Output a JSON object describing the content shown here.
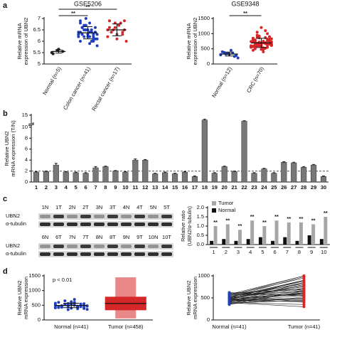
{
  "chart_data": [
    {
      "type": "dot_plot",
      "panel_label": "a",
      "title": "GSE5206",
      "ylabel": [
        "Relative mRNA",
        "expression of UBN2"
      ],
      "groups": [
        {
          "name": "Normal (n=5)",
          "color": "#222222",
          "values": [
            5.5,
            5.6,
            5.55,
            5.45,
            5.65
          ]
        },
        {
          "name": "Colon cancer (n=41)",
          "color": "#1f3fbf",
          "values": [
            6.3,
            6.5,
            6.1,
            6.8,
            6.2,
            6.4,
            6.6,
            5.9,
            6.3,
            6.7,
            6.0,
            6.4,
            6.5,
            6.2,
            6.9,
            6.3,
            6.1,
            6.6,
            6.4,
            5.8,
            6.2,
            6.5,
            6.3,
            6.7,
            6.0,
            6.4,
            6.2,
            6.6,
            6.3,
            6.8,
            6.1,
            6.5,
            6.4,
            6.2,
            7.0,
            6.3,
            6.0,
            6.5,
            6.4,
            6.6,
            6.2
          ]
        },
        {
          "name": "Rectal cancer (n=17)",
          "color": "#d62728",
          "values": [
            6.5,
            6.8,
            6.3,
            6.6,
            6.1,
            6.9,
            6.4,
            6.7,
            6.0,
            6.5,
            6.8,
            6.2,
            6.6,
            6.4,
            6.9,
            6.3,
            6.5
          ]
        }
      ],
      "significance": [
        "**",
        "**"
      ],
      "ylim": [
        5,
        7
      ],
      "yticks": [
        5,
        5.5,
        6,
        6.5,
        7
      ]
    },
    {
      "type": "dot_plot",
      "title": "GSE9348",
      "ylabel": [
        "Relative mRNA",
        "expression of UBN2"
      ],
      "groups": [
        {
          "name": "Normal (n=12)",
          "color": "#1f3fbf",
          "values": [
            300,
            350,
            250,
            400,
            320,
            280,
            380,
            450,
            200,
            330,
            360,
            310
          ]
        },
        {
          "name": "CRC (n=70)",
          "color": "#d62728",
          "values": [
            600,
            700,
            550,
            800,
            650,
            900,
            500,
            750,
            620,
            680,
            1100,
            580,
            720,
            640,
            850,
            480,
            690,
            760,
            530,
            610,
            950,
            670,
            590,
            710,
            820,
            450,
            630,
            780,
            560,
            700,
            660,
            880,
            520,
            740,
            600,
            1000,
            570,
            690,
            810,
            640,
            400,
            730,
            620,
            870,
            550,
            680,
            760,
            590,
            1200,
            650,
            710,
            480,
            830,
            600,
            690,
            560,
            920,
            640,
            750,
            580,
            680,
            790,
            510,
            620,
            1050,
            700,
            570,
            860,
            630,
            720
          ]
        }
      ],
      "significance": [
        "**"
      ],
      "ylim": [
        0,
        1500
      ],
      "yticks": [
        0,
        500,
        1000,
        1500
      ]
    },
    {
      "type": "bar",
      "panel_label": "b",
      "ylabel": [
        "Relative UBN2",
        "mRNA expression (T/N)"
      ],
      "color": "#777777",
      "categories": [
        "1",
        "2",
        "3",
        "4",
        "5",
        "6",
        "7",
        "8",
        "9",
        "10",
        "11",
        "12",
        "13",
        "14",
        "15",
        "16",
        "17",
        "18",
        "19",
        "20",
        "21",
        "22",
        "23",
        "24",
        "25",
        "26",
        "27",
        "28",
        "29",
        "30"
      ],
      "values": [
        1.8,
        1.9,
        3.1,
        1.8,
        1.7,
        1.6,
        2.6,
        2.8,
        2.0,
        1.8,
        4.0,
        4.0,
        1.5,
        1.7,
        1.5,
        1.8,
        1.0,
        13,
        1.6,
        2.8,
        1.9,
        12.5,
        1.6,
        2.4,
        1.6,
        3.6,
        3.5,
        2.7,
        3.1,
        1.0
      ],
      "errors": [
        0.1,
        0.1,
        0.3,
        0.1,
        0.1,
        0.1,
        0.2,
        0.1,
        0.1,
        0.1,
        0.2,
        0.1,
        0.1,
        0.1,
        0.1,
        0.1,
        0.1,
        0.3,
        0.1,
        0.1,
        0.1,
        0.2,
        0.1,
        0.1,
        0.1,
        0.1,
        0.1,
        0.1,
        0.1,
        0.1
      ],
      "reference_line": 2,
      "ylim": [
        0,
        15
      ],
      "ybreak": 10,
      "yticks": [
        0,
        2,
        4,
        6,
        8,
        10,
        15
      ]
    },
    {
      "type": "blot",
      "panel_label": "c",
      "rows": [
        {
          "lanes": [
            "1N",
            "1T",
            "2N",
            "2T",
            "3N",
            "3T",
            "4N",
            "4T",
            "5N",
            "5T"
          ],
          "bands": [
            "UBN2",
            "α-tubulin"
          ]
        },
        {
          "lanes": [
            "6N",
            "6T",
            "7N",
            "7T",
            "8N",
            "8T",
            "9N",
            "9T",
            "10N",
            "10T"
          ],
          "bands": [
            "UBN2",
            "α-tubulin"
          ]
        }
      ]
    },
    {
      "type": "grouped_bar",
      "ylabel": [
        "Relative ratio",
        "(UBN2/α-tubulin)"
      ],
      "categories": [
        "1",
        "2",
        "3",
        "4",
        "5",
        "6",
        "7",
        "8",
        "9",
        "10"
      ],
      "series": [
        {
          "name": "Tumor",
          "color": "#a6a6a6",
          "values": [
            1.0,
            1.1,
            0.8,
            1.3,
            1.0,
            1.3,
            1.2,
            1.2,
            1.1,
            1.5
          ]
        },
        {
          "name": "Normal",
          "color": "#111111",
          "values": [
            0.2,
            0.3,
            0.2,
            0.3,
            0.4,
            0.2,
            0.4,
            0.2,
            0.5,
            0.3
          ]
        }
      ],
      "annotations": [
        "**",
        "**",
        "**",
        "**",
        "**",
        "**",
        "**",
        "**",
        "**",
        "**"
      ],
      "ylim": [
        0,
        2
      ],
      "yticks": [
        {
          "value": 0,
          "label": "0.0"
        },
        {
          "value": 0.5,
          "label": "0.5"
        },
        {
          "value": 1,
          "label": "1.0"
        },
        {
          "value": 1.5,
          "label": "1.5"
        },
        {
          "value": 2,
          "label": "2.0"
        }
      ]
    },
    {
      "type": "dot_plot",
      "panel_label": "d",
      "ylabel": [
        "Relative UBN2",
        "mRNA expression"
      ],
      "annotation": "p < 0.01",
      "groups": [
        {
          "name": "Normal (n=41)",
          "color": "#1f3fbf",
          "values": [
            480,
            520,
            450,
            600,
            400,
            550,
            430,
            500,
            470,
            650,
            380,
            510,
            460,
            540,
            420,
            590,
            490,
            440,
            700,
            360,
            530,
            470,
            410,
            560,
            500,
            450,
            620,
            390,
            480,
            520,
            480,
            520,
            440,
            570,
            350,
            500,
            460,
            530,
            410,
            480,
            600
          ]
        },
        {
          "name": "Tumor (n=458)",
          "color": "#d62728",
          "mean": 560,
          "sd": 230,
          "min": 50,
          "max": 1450
        }
      ],
      "ylim": [
        0,
        1500
      ],
      "yticks": [
        0,
        500,
        1000,
        1500
      ]
    },
    {
      "type": "paired_line",
      "ylabel": [
        "Relative UBN2",
        "mRNA expression"
      ],
      "groups": [
        {
          "name": "Normal (n=41)",
          "color": "#1f3fbf",
          "values": [
            450,
            500,
            380,
            550,
            420,
            600,
            400,
            480,
            520,
            350,
            560,
            430,
            470,
            390,
            610,
            440,
            500,
            460,
            580,
            410,
            490,
            530,
            370,
            450,
            620,
            480,
            400,
            540,
            460,
            510,
            430,
            570,
            490,
            360,
            520,
            450,
            600,
            420,
            480,
            500,
            440
          ]
        },
        {
          "name": "Tumor (n=41)",
          "color": "#d62728",
          "values": [
            700,
            900,
            450,
            1000,
            600,
            550,
            850,
            400,
            750,
            650,
            950,
            500,
            800,
            300,
            700,
            620,
            880,
            480,
            1000,
            560,
            720,
            420,
            680,
            900,
            540,
            760,
            350,
            820,
            600,
            980,
            470,
            640,
            780,
            520,
            900,
            610,
            700,
            430,
            850,
            580,
            660
          ]
        }
      ],
      "ylim": [
        0,
        1000
      ],
      "yticks": [
        0,
        500,
        1000
      ]
    }
  ]
}
